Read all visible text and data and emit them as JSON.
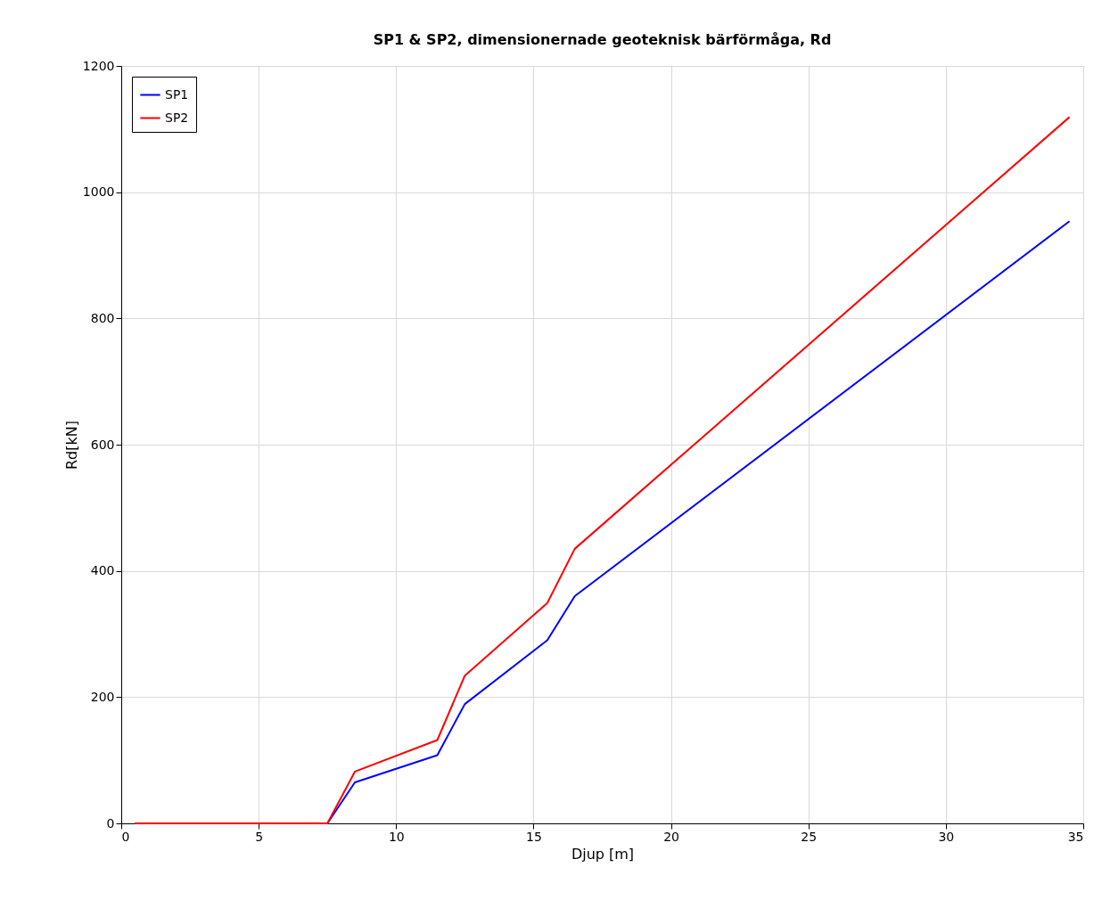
{
  "chart_data": {
    "type": "line",
    "title": "SP1 & SP2, dimensionernade geoteknisk bärförmåga, Rd",
    "xlabel": "Djup [m]",
    "ylabel": "Rd[kN]",
    "x": [
      0.5,
      7.5,
      8.5,
      11.5,
      12.5,
      15.5,
      16.5,
      34.5
    ],
    "series": [
      {
        "name": "SP1",
        "color": "#0000ff",
        "values": [
          0,
          0,
          65,
          108,
          189,
          290,
          360,
          954
        ]
      },
      {
        "name": "SP2",
        "color": "#ff0000",
        "values": [
          0,
          0,
          82,
          132,
          234,
          349,
          435,
          1119
        ]
      }
    ],
    "xlim": [
      0,
      35
    ],
    "xticks": [
      0,
      5,
      10,
      15,
      20,
      25,
      30,
      35
    ],
    "ylim": [
      0,
      1200
    ],
    "yticks": [
      0,
      200,
      400,
      600,
      800,
      1000,
      1200
    ],
    "grid": true,
    "legend": "top left",
    "marker": "none",
    "line_style": "solid"
  }
}
